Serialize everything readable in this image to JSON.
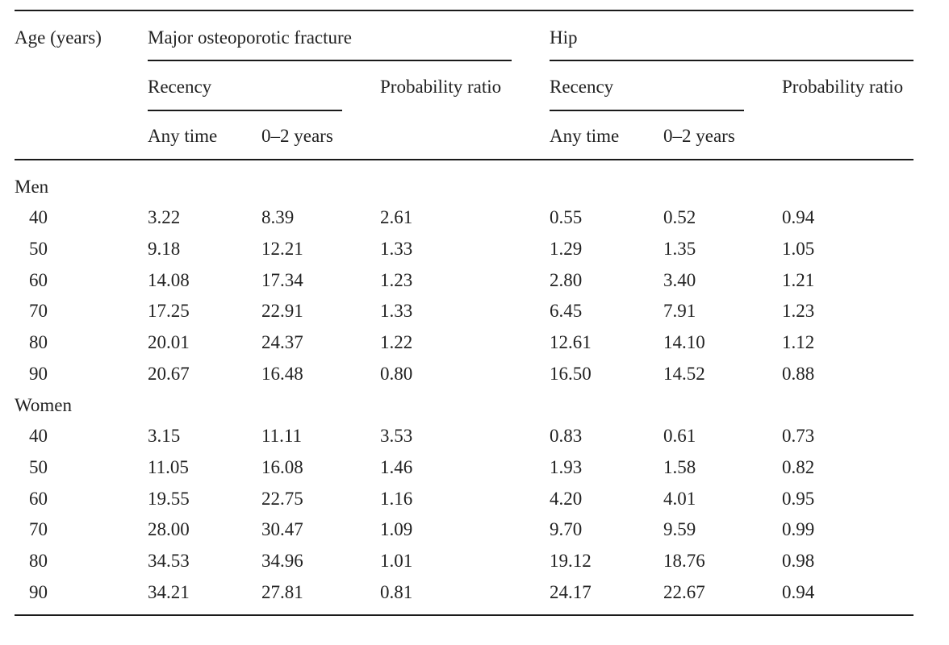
{
  "header": {
    "age_label": "Age (years)",
    "mof_label": "Major osteoporotic fracture",
    "hip_label": "Hip",
    "recency_label": "Recency",
    "prob_ratio_label": "Probability ratio",
    "any_time_label": "Any time",
    "zero_two_label": "0–2 years"
  },
  "groups": [
    {
      "label": "Men",
      "rows": [
        {
          "age": "40",
          "mof_any": "3.22",
          "mof_02": "8.39",
          "mof_pr": "2.61",
          "hip_any": "0.55",
          "hip_02": "0.52",
          "hip_pr": "0.94"
        },
        {
          "age": "50",
          "mof_any": "9.18",
          "mof_02": "12.21",
          "mof_pr": "1.33",
          "hip_any": "1.29",
          "hip_02": "1.35",
          "hip_pr": "1.05"
        },
        {
          "age": "60",
          "mof_any": "14.08",
          "mof_02": "17.34",
          "mof_pr": "1.23",
          "hip_any": "2.80",
          "hip_02": "3.40",
          "hip_pr": "1.21"
        },
        {
          "age": "70",
          "mof_any": "17.25",
          "mof_02": "22.91",
          "mof_pr": "1.33",
          "hip_any": "6.45",
          "hip_02": "7.91",
          "hip_pr": "1.23"
        },
        {
          "age": "80",
          "mof_any": "20.01",
          "mof_02": "24.37",
          "mof_pr": "1.22",
          "hip_any": "12.61",
          "hip_02": "14.10",
          "hip_pr": "1.12"
        },
        {
          "age": "90",
          "mof_any": "20.67",
          "mof_02": "16.48",
          "mof_pr": "0.80",
          "hip_any": "16.50",
          "hip_02": "14.52",
          "hip_pr": "0.88"
        }
      ]
    },
    {
      "label": "Women",
      "rows": [
        {
          "age": "40",
          "mof_any": "3.15",
          "mof_02": "11.11",
          "mof_pr": "3.53",
          "hip_any": "0.83",
          "hip_02": "0.61",
          "hip_pr": "0.73"
        },
        {
          "age": "50",
          "mof_any": "11.05",
          "mof_02": "16.08",
          "mof_pr": "1.46",
          "hip_any": "1.93",
          "hip_02": "1.58",
          "hip_pr": "0.82"
        },
        {
          "age": "60",
          "mof_any": "19.55",
          "mof_02": "22.75",
          "mof_pr": "1.16",
          "hip_any": "4.20",
          "hip_02": "4.01",
          "hip_pr": "0.95"
        },
        {
          "age": "70",
          "mof_any": "28.00",
          "mof_02": "30.47",
          "mof_pr": "1.09",
          "hip_any": "9.70",
          "hip_02": "9.59",
          "hip_pr": "0.99"
        },
        {
          "age": "80",
          "mof_any": "34.53",
          "mof_02": "34.96",
          "mof_pr": "1.01",
          "hip_any": "19.12",
          "hip_02": "18.76",
          "hip_pr": "0.98"
        },
        {
          "age": "90",
          "mof_any": "34.21",
          "mof_02": "27.81",
          "mof_pr": "0.81",
          "hip_any": "24.17",
          "hip_02": "22.67",
          "hip_pr": "0.94"
        }
      ]
    }
  ]
}
